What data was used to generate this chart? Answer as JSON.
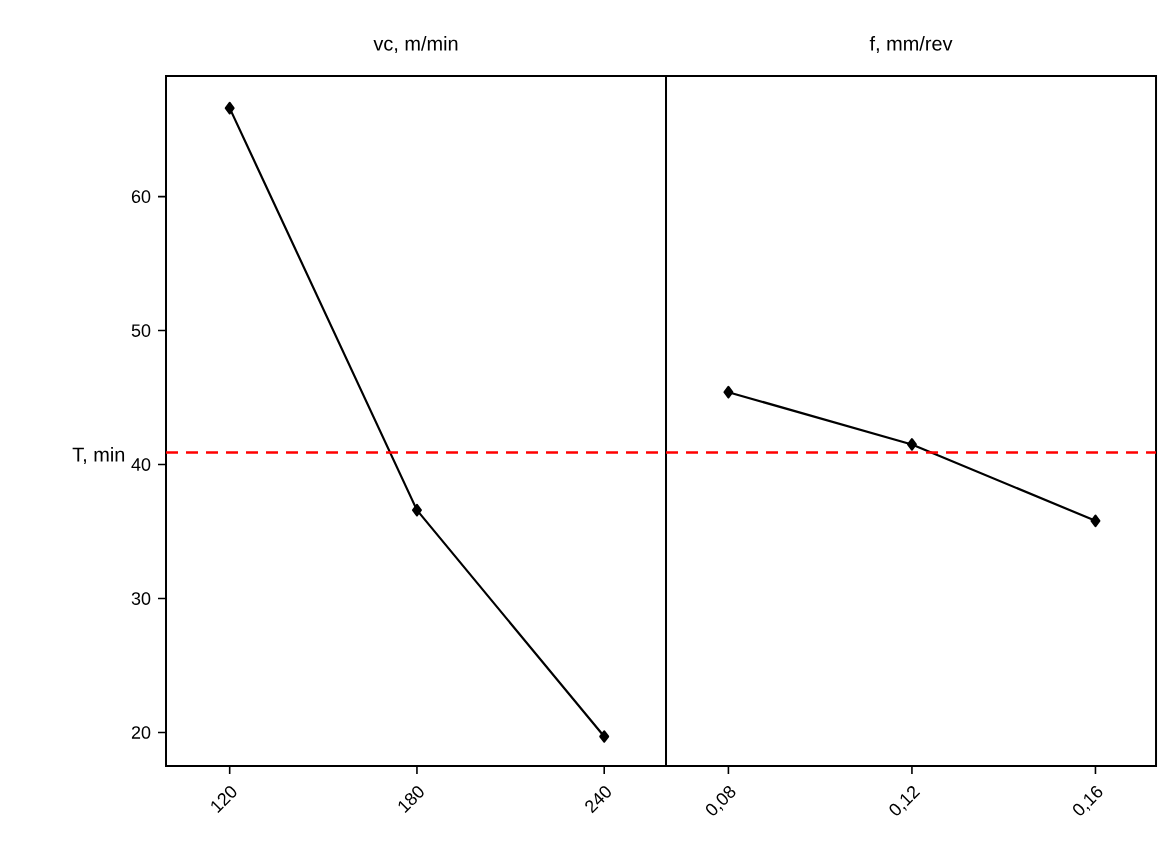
{
  "chart_data": [
    {
      "type": "line",
      "title": "vc, m/min",
      "ylabel": "T, min",
      "categories": [
        "120",
        "180",
        "240"
      ],
      "series": [
        {
          "color": "#000000",
          "values": [
            66.6,
            36.6,
            19.7
          ]
        }
      ],
      "ylim": [
        17.5,
        69
      ],
      "yticks": [
        20,
        30,
        40,
        50,
        60
      ],
      "marker": "diamond",
      "line_style": "solid",
      "grid": false,
      "ref_lines": [
        {
          "axis": "y",
          "value": 40.9,
          "color": "#ff0000",
          "line_style": "dashed"
        }
      ]
    },
    {
      "type": "line",
      "title": "f, mm/rev",
      "categories": [
        "0,08",
        "0,12",
        "0,16"
      ],
      "series": [
        {
          "color": "#000000",
          "values": [
            45.4,
            41.5,
            35.8
          ]
        }
      ],
      "ylim": [
        17.5,
        69
      ],
      "tick_labels": "x",
      "marker": "diamond",
      "line_style": "solid",
      "grid": false,
      "ref_lines": [
        {
          "axis": "y",
          "value": 40.9,
          "color": "#ff0000",
          "line_style": "dashed"
        }
      ]
    }
  ]
}
